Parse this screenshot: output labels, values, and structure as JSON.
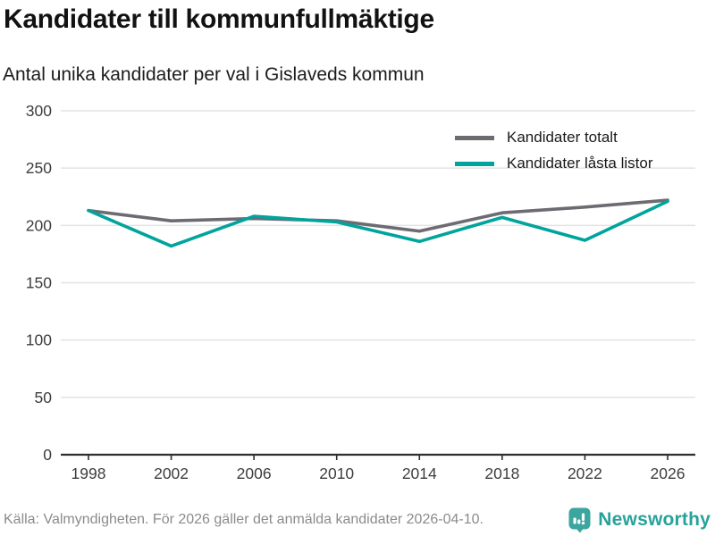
{
  "header": {
    "title": "Kandidater till kommunfullmäktige",
    "subtitle": "Antal unika kandidater per val i Gislaveds kommun"
  },
  "chart_data": {
    "type": "line",
    "x": [
      1998,
      2002,
      2006,
      2010,
      2014,
      2018,
      2022,
      2026
    ],
    "series": [
      {
        "name": "Kandidater totalt",
        "color": "#6e6a72",
        "values": [
          213,
          204,
          206,
          204,
          195,
          211,
          216,
          222
        ]
      },
      {
        "name": "Kandidater låsta listor",
        "color": "#00a49c",
        "values": [
          213,
          182,
          208,
          203,
          186,
          207,
          187,
          221
        ]
      }
    ],
    "title": "Kandidater till kommunfullmäktige",
    "subtitle": "Antal unika kandidater per val i Gislaveds kommun",
    "xlabel": "",
    "ylabel": "",
    "ylim": [
      0,
      300
    ],
    "yticks": [
      0,
      50,
      100,
      150,
      200,
      250,
      300
    ],
    "grid": true,
    "legend_position": "top-right"
  },
  "colors": {
    "grid": "#e3e3e3",
    "axis": "#2e2e2e",
    "tick_label": "#3d3d3d",
    "total_line": "#6e6a72",
    "locked_line": "#00a49c",
    "brand_teal": "#3aa69d"
  },
  "footer": {
    "source": "Källa: Valmyndigheten. För 2026 gäller det anmälda kandidater 2026-04-10.",
    "brand": "Newsworthy"
  }
}
